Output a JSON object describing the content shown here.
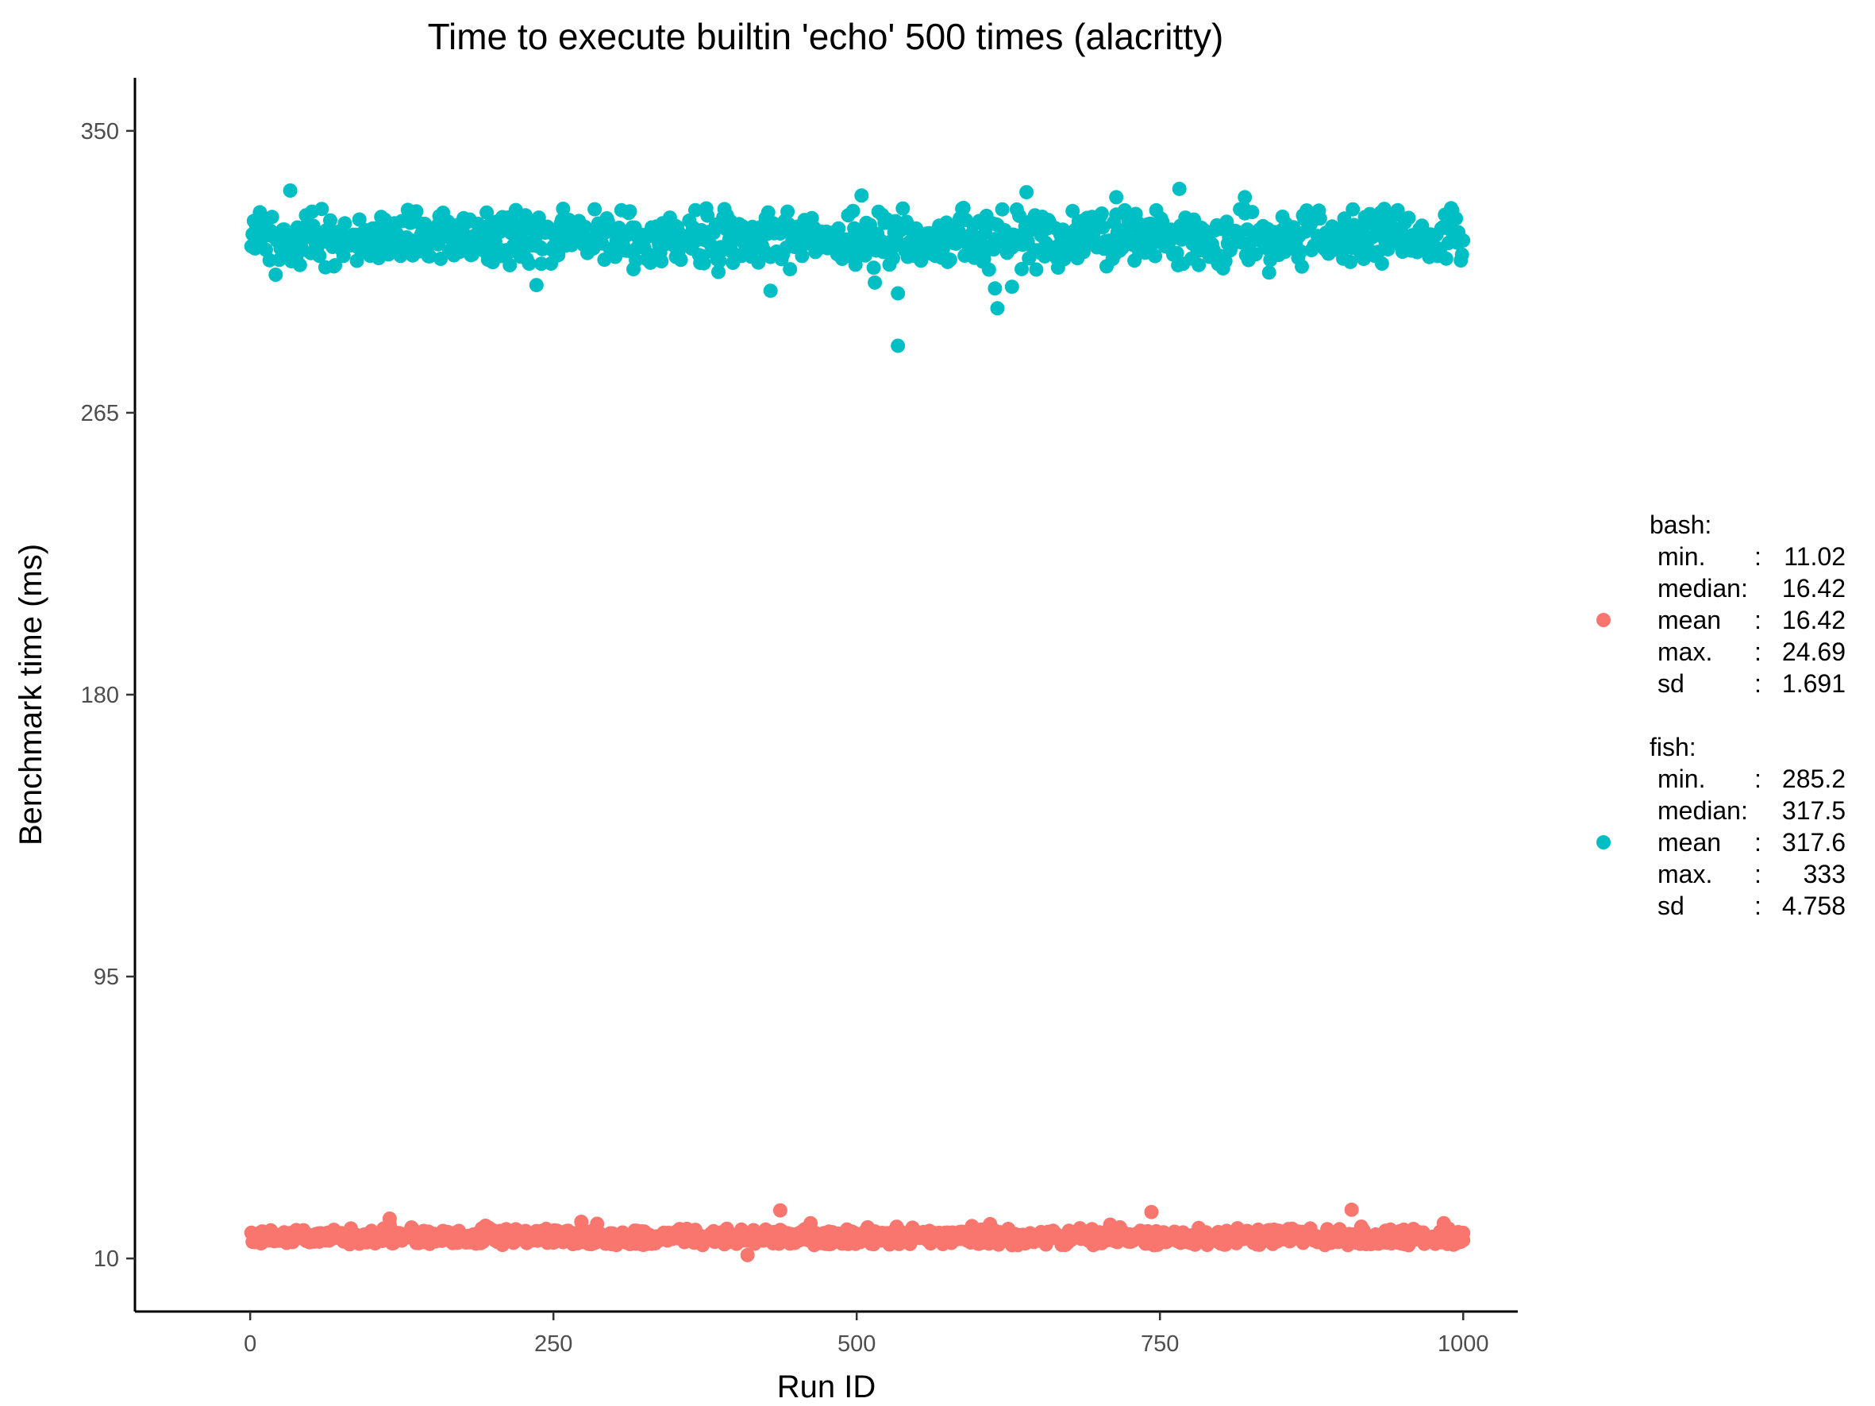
{
  "chart_data": {
    "type": "scatter",
    "title": "Time to execute builtin 'echo' 500 times (alacritty)",
    "xlabel": "Run ID",
    "ylabel": "Benchmark time (ms)",
    "xlim": [
      -95,
      1045
    ],
    "ylim": [
      -6,
      366
    ],
    "x_ticks": [
      0,
      250,
      500,
      750,
      1000
    ],
    "x_tick_labels": [
      "0",
      "250",
      "500",
      "750",
      "1000"
    ],
    "y_ticks": [
      10,
      95,
      180,
      265,
      350
    ],
    "y_tick_labels": [
      "10",
      "95",
      "180",
      "265",
      "350"
    ],
    "grid": false,
    "legend_position": "right",
    "series": [
      {
        "name": "bash",
        "color": "#F8766D",
        "n": 1000,
        "center": 16.42,
        "spread": 1.691,
        "y_range": [
          11.02,
          24.69
        ],
        "outliers": [
          {
            "x": 437,
            "y": 24.5
          },
          {
            "x": 908,
            "y": 24.69
          },
          {
            "x": 743,
            "y": 24.0
          },
          {
            "x": 115,
            "y": 22.0
          },
          {
            "x": 410,
            "y": 11.02
          },
          {
            "x": 1000,
            "y": 15.5
          }
        ],
        "stats": {
          "header": "bash:",
          "lines": [
            {
              "label": "min.",
              "sep": ":",
              "value": "11.02"
            },
            {
              "label": "median:",
              "sep": "",
              "value": "16.42"
            },
            {
              "label": "mean",
              "sep": ":",
              "value": "16.42"
            },
            {
              "label": "max.",
              "sep": ":",
              "value": "24.69"
            },
            {
              "label": "sd",
              "sep": ":",
              "value": "1.691"
            }
          ]
        }
      },
      {
        "name": "fish",
        "color": "#00BFC4",
        "n": 1000,
        "center": 317.5,
        "spread": 4.758,
        "y_range": [
          285.2,
          333
        ],
        "outliers": [
          {
            "x": 534,
            "y": 285.2
          },
          {
            "x": 616,
            "y": 296.5
          },
          {
            "x": 534,
            "y": 301.0
          },
          {
            "x": 614,
            "y": 302.5
          },
          {
            "x": 429,
            "y": 301.8
          },
          {
            "x": 628,
            "y": 303.0
          },
          {
            "x": 236,
            "y": 303.5
          },
          {
            "x": 33,
            "y": 332.0
          },
          {
            "x": 640,
            "y": 331.5
          },
          {
            "x": 766,
            "y": 332.5
          },
          {
            "x": 504,
            "y": 330.5
          },
          {
            "x": 714,
            "y": 330.0
          },
          {
            "x": 820,
            "y": 330.0
          }
        ],
        "stats": {
          "header": "fish:",
          "lines": [
            {
              "label": "min.",
              "sep": ":",
              "value": "285.2"
            },
            {
              "label": "median:",
              "sep": "",
              "value": "317.5"
            },
            {
              "label": "mean",
              "sep": ":",
              "value": "317.6"
            },
            {
              "label": "max.",
              "sep": ":",
              "value": "333"
            },
            {
              "label": "sd",
              "sep": ":",
              "value": "4.758"
            }
          ]
        }
      }
    ]
  }
}
